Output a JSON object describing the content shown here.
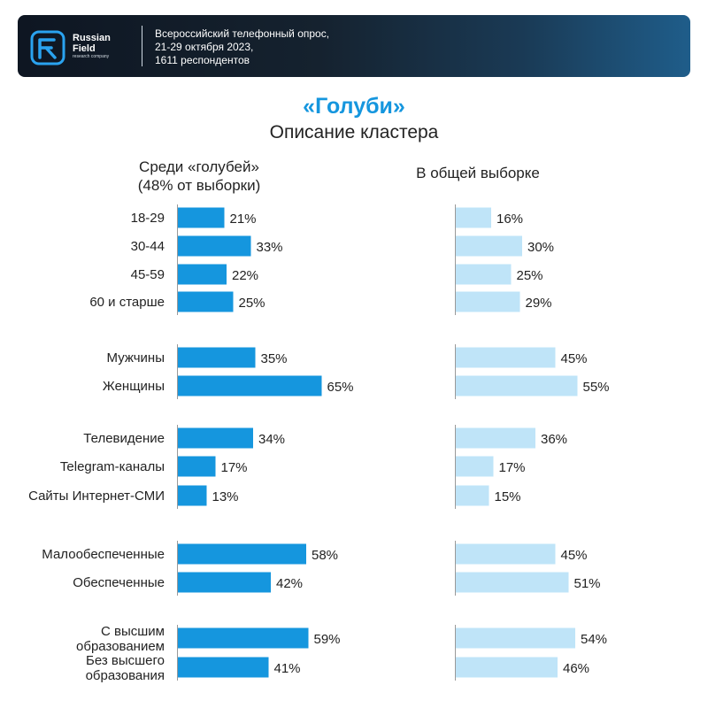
{
  "header": {
    "logo_line1": "Russian",
    "logo_line2": "Field",
    "logo_sub": "research company",
    "survey_line1": "Всероссийский телефонный опрос,",
    "survey_line2": "21-29 октября 2023,",
    "survey_line3": "1611 респондентов"
  },
  "colors": {
    "primary_bar": "#1596de",
    "secondary_bar": "#bfe4f8",
    "title": "#1596de"
  },
  "chart_data": {
    "type": "bar",
    "orientation": "horizontal",
    "title": "«Голуби»",
    "subtitle": "Описание кластера",
    "categories": [
      "18-29",
      "30-44",
      "45-59",
      "60 и старше",
      "Мужчины",
      "Женщины",
      "Телевидение",
      "Telegram-каналы",
      "Сайты Интернет-СМИ",
      "Малообеспеченные",
      "Обеспеченные",
      "С высшим образованием",
      "Без высшего образования"
    ],
    "groups": [
      [
        0,
        1,
        2,
        3
      ],
      [
        4,
        5
      ],
      [
        6,
        7,
        8
      ],
      [
        9,
        10
      ],
      [
        11,
        12
      ]
    ],
    "series": [
      {
        "name": "Среди «голубей» (48% от выборки)",
        "values": [
          21,
          33,
          22,
          25,
          35,
          65,
          34,
          17,
          13,
          58,
          42,
          59,
          41
        ],
        "labels": [
          "21%",
          "33%",
          "22%",
          "25%",
          "35%",
          "65%",
          "34%",
          "17%",
          "13%",
          "58%",
          "42%",
          "59%",
          "41%"
        ]
      },
      {
        "name": "В общей выборке",
        "values": [
          16,
          30,
          25,
          29,
          45,
          55,
          36,
          17,
          15,
          45,
          51,
          54,
          46
        ],
        "labels": [
          "16%",
          "30%",
          "25%",
          "29%",
          "45%",
          "55%",
          "36%",
          "17%",
          "15%",
          "45%",
          "51%",
          "54%",
          "46%"
        ]
      }
    ],
    "unit": "%",
    "xlim": [
      0,
      100
    ]
  }
}
